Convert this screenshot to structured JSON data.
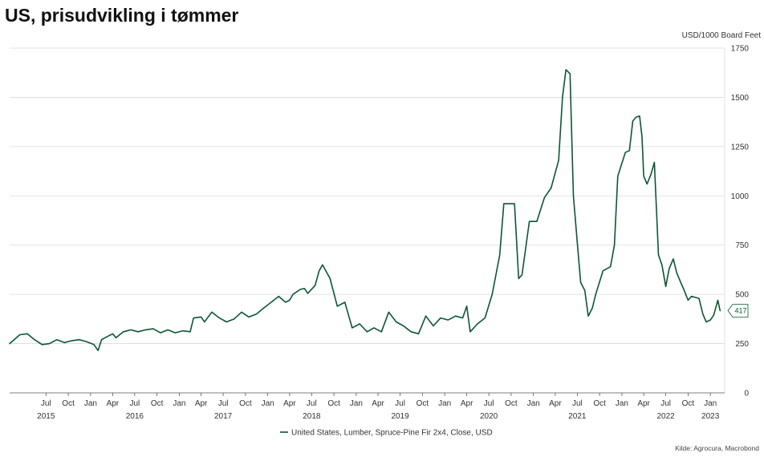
{
  "title": "US, prisudvikling i tømmer",
  "source": "Kilde: Agrocura, Macrobond",
  "colors": {
    "series": "#0b5733",
    "grid": "#d9d9d9",
    "axis": "#555555"
  },
  "chart_data": {
    "type": "line",
    "title": "US, prisudvikling i tømmer",
    "ylabel": "USD/1000 Board Feet",
    "xlabel": "",
    "ylim": [
      0,
      1750
    ],
    "xlim": [
      "2015-02-01",
      "2023-03-01"
    ],
    "yticks": [
      0,
      250,
      500,
      750,
      1000,
      1250,
      1500,
      1750
    ],
    "y_axis_position": "right",
    "grid": "horizontal",
    "legend_position": "bottom-center",
    "month_ticks": [
      {
        "date": "2015-07-01",
        "label": "Jul"
      },
      {
        "date": "2015-10-01",
        "label": "Oct"
      },
      {
        "date": "2016-01-01",
        "label": "Jan"
      },
      {
        "date": "2016-04-01",
        "label": "Apr"
      },
      {
        "date": "2016-07-01",
        "label": "Jul"
      },
      {
        "date": "2016-10-01",
        "label": "Oct"
      },
      {
        "date": "2017-01-01",
        "label": "Jan"
      },
      {
        "date": "2017-04-01",
        "label": "Apr"
      },
      {
        "date": "2017-07-01",
        "label": "Jul"
      },
      {
        "date": "2017-10-01",
        "label": "Oct"
      },
      {
        "date": "2018-01-01",
        "label": "Jan"
      },
      {
        "date": "2018-04-01",
        "label": "Apr"
      },
      {
        "date": "2018-07-01",
        "label": "Jul"
      },
      {
        "date": "2018-10-01",
        "label": "Oct"
      },
      {
        "date": "2019-01-01",
        "label": "Jan"
      },
      {
        "date": "2019-04-01",
        "label": "Apr"
      },
      {
        "date": "2019-07-01",
        "label": "Jul"
      },
      {
        "date": "2019-10-01",
        "label": "Oct"
      },
      {
        "date": "2020-01-01",
        "label": "Jan"
      },
      {
        "date": "2020-04-01",
        "label": "Apr"
      },
      {
        "date": "2020-07-01",
        "label": "Jul"
      },
      {
        "date": "2020-10-01",
        "label": "Oct"
      },
      {
        "date": "2021-01-01",
        "label": "Jan"
      },
      {
        "date": "2021-04-01",
        "label": "Apr"
      },
      {
        "date": "2021-07-01",
        "label": "Jul"
      },
      {
        "date": "2021-10-01",
        "label": "Oct"
      },
      {
        "date": "2022-01-01",
        "label": "Jan"
      },
      {
        "date": "2022-04-01",
        "label": "Apr"
      },
      {
        "date": "2022-07-01",
        "label": "Jul"
      },
      {
        "date": "2022-10-01",
        "label": "Oct"
      },
      {
        "date": "2023-01-01",
        "label": "Jan"
      }
    ],
    "year_labels": [
      {
        "date": "2015-07-01",
        "label": "2015"
      },
      {
        "date": "2016-07-01",
        "label": "2016"
      },
      {
        "date": "2017-07-01",
        "label": "2017"
      },
      {
        "date": "2018-07-01",
        "label": "2018"
      },
      {
        "date": "2019-07-01",
        "label": "2019"
      },
      {
        "date": "2020-07-01",
        "label": "2020"
      },
      {
        "date": "2021-07-01",
        "label": "2021"
      },
      {
        "date": "2022-07-01",
        "label": "2022"
      },
      {
        "date": "2023-01-01",
        "label": "2023"
      }
    ],
    "series": [
      {
        "name": "United States, Lumber, Spruce-Pine Fir 2x4, Close, USD",
        "last_value_label": "417",
        "x": [
          "2015-02-01",
          "2015-03-15",
          "2015-04-15",
          "2015-05-15",
          "2015-06-15",
          "2015-07-15",
          "2015-08-15",
          "2015-09-15",
          "2015-10-15",
          "2015-11-15",
          "2015-12-15",
          "2016-01-15",
          "2016-02-01",
          "2016-02-15",
          "2016-03-01",
          "2016-04-01",
          "2016-04-15",
          "2016-05-15",
          "2016-06-15",
          "2016-07-15",
          "2016-08-15",
          "2016-09-15",
          "2016-10-15",
          "2016-11-15",
          "2016-12-15",
          "2017-01-15",
          "2017-02-15",
          "2017-03-01",
          "2017-04-01",
          "2017-04-15",
          "2017-05-15",
          "2017-06-15",
          "2017-07-15",
          "2017-08-15",
          "2017-09-15",
          "2017-10-15",
          "2017-11-15",
          "2017-12-15",
          "2018-01-15",
          "2018-02-15",
          "2018-03-15",
          "2018-04-01",
          "2018-04-15",
          "2018-05-15",
          "2018-06-01",
          "2018-06-15",
          "2018-07-15",
          "2018-08-01",
          "2018-08-15",
          "2018-09-15",
          "2018-10-15",
          "2018-11-15",
          "2018-12-15",
          "2019-01-15",
          "2019-02-15",
          "2019-03-15",
          "2019-04-15",
          "2019-05-15",
          "2019-06-15",
          "2019-07-15",
          "2019-08-15",
          "2019-09-15",
          "2019-10-15",
          "2019-11-15",
          "2019-12-15",
          "2020-01-15",
          "2020-02-15",
          "2020-03-15",
          "2020-04-01",
          "2020-04-15",
          "2020-05-15",
          "2020-06-15",
          "2020-07-15",
          "2020-08-15",
          "2020-09-01",
          "2020-09-15",
          "2020-10-15",
          "2020-11-01",
          "2020-11-15",
          "2020-12-15",
          "2021-01-01",
          "2021-01-15",
          "2021-02-15",
          "2021-03-15",
          "2021-04-15",
          "2021-05-01",
          "2021-05-15",
          "2021-06-01",
          "2021-06-15",
          "2021-07-01",
          "2021-07-15",
          "2021-08-01",
          "2021-08-15",
          "2021-09-01",
          "2021-09-15",
          "2021-10-15",
          "2021-11-15",
          "2021-12-01",
          "2021-12-15",
          "2022-01-15",
          "2022-02-01",
          "2022-02-15",
          "2022-03-01",
          "2022-03-15",
          "2022-03-25",
          "2022-04-01",
          "2022-04-15",
          "2022-05-01",
          "2022-05-15",
          "2022-06-01",
          "2022-06-15",
          "2022-07-01",
          "2022-07-15",
          "2022-08-01",
          "2022-08-15",
          "2022-09-01",
          "2022-09-15",
          "2022-10-01",
          "2022-10-15",
          "2022-11-15",
          "2022-12-01",
          "2022-12-15",
          "2023-01-01",
          "2023-01-15",
          "2023-02-01",
          "2023-02-10"
        ],
        "y": [
          250,
          295,
          300,
          270,
          245,
          250,
          270,
          255,
          265,
          270,
          260,
          245,
          215,
          270,
          280,
          300,
          280,
          310,
          320,
          310,
          320,
          325,
          305,
          320,
          305,
          315,
          310,
          380,
          385,
          360,
          410,
          380,
          360,
          375,
          410,
          385,
          400,
          430,
          460,
          490,
          460,
          470,
          500,
          525,
          530,
          505,
          545,
          620,
          650,
          580,
          440,
          460,
          330,
          350,
          310,
          330,
          310,
          410,
          360,
          340,
          310,
          300,
          390,
          340,
          380,
          370,
          390,
          380,
          440,
          310,
          350,
          380,
          500,
          700,
          960,
          960,
          960,
          580,
          600,
          870,
          870,
          870,
          990,
          1040,
          1180,
          1500,
          1640,
          1620,
          1000,
          760,
          560,
          520,
          390,
          430,
          500,
          620,
          640,
          750,
          1100,
          1220,
          1230,
          1380,
          1400,
          1405,
          1300,
          1100,
          1060,
          1110,
          1170,
          700,
          650,
          540,
          630,
          680,
          610,
          560,
          520,
          470,
          490,
          480,
          400,
          360,
          370,
          395,
          470,
          417
        ]
      }
    ]
  }
}
